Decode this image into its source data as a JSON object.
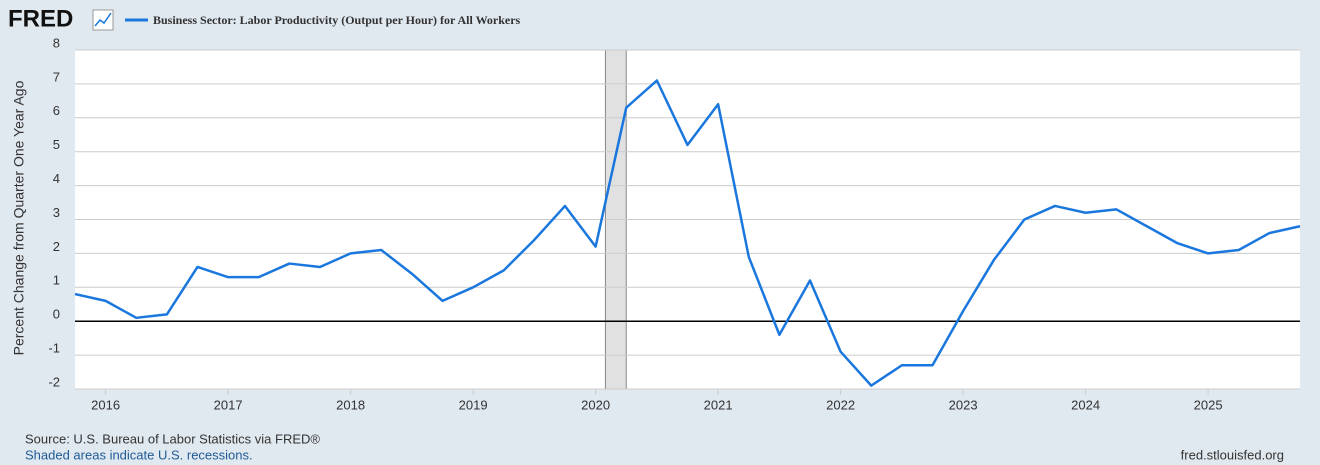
{
  "chart_data": {
    "type": "line",
    "logo": "FRED",
    "title": "Business Sector: Labor Productivity (Output per Hour) for All Workers",
    "y_label": "Percent Change from Quarter One Year Ago",
    "source": "Source: U.S. Bureau of Labor Statistics via FRED®",
    "note": "Shaded areas indicate U.S. recessions.",
    "site": "fred.stlouisfed.org",
    "x": [
      2015.75,
      2016,
      2016.25,
      2016.5,
      2016.75,
      2017,
      2017.25,
      2017.5,
      2017.75,
      2018,
      2018.25,
      2018.5,
      2018.75,
      2019,
      2019.25,
      2019.5,
      2019.75,
      2020,
      2020.25,
      2020.5,
      2020.75,
      2021,
      2021.25,
      2021.5,
      2021.75,
      2022,
      2022.25,
      2022.5,
      2022.75,
      2023,
      2023.25,
      2023.5,
      2023.75,
      2024,
      2024.25,
      2024.5,
      2024.75,
      2025,
      2025.25,
      2025.5,
      2025.75
    ],
    "series": [
      {
        "name": "Business Sector: Labor Productivity (Output per Hour) for All Workers",
        "color": "#1a77dd",
        "values": [
          0.8,
          0.6,
          0.1,
          0.2,
          1.6,
          1.3,
          1.3,
          1.7,
          1.6,
          2.0,
          2.1,
          1.4,
          0.6,
          1.0,
          1.5,
          2.4,
          3.4,
          2.2,
          6.3,
          7.1,
          5.2,
          6.4,
          1.9,
          -0.4,
          1.2,
          -0.9,
          -1.9,
          -1.3,
          -1.3,
          0.3,
          1.8,
          3.0,
          3.4,
          3.2,
          3.3,
          2.8,
          2.3,
          2.0,
          2.1,
          2.6,
          2.8
        ]
      }
    ],
    "recessions": [
      [
        2020.08,
        2020.25
      ]
    ],
    "xlim": [
      2015.75,
      2025.75
    ],
    "xticks": [
      2016,
      2017,
      2018,
      2019,
      2020,
      2021,
      2022,
      2023,
      2024,
      2025
    ],
    "ylim": [
      -2,
      8
    ],
    "yticks": [
      -2,
      -1,
      0,
      1,
      2,
      3,
      4,
      5,
      6,
      7,
      8
    ],
    "grid": true
  }
}
